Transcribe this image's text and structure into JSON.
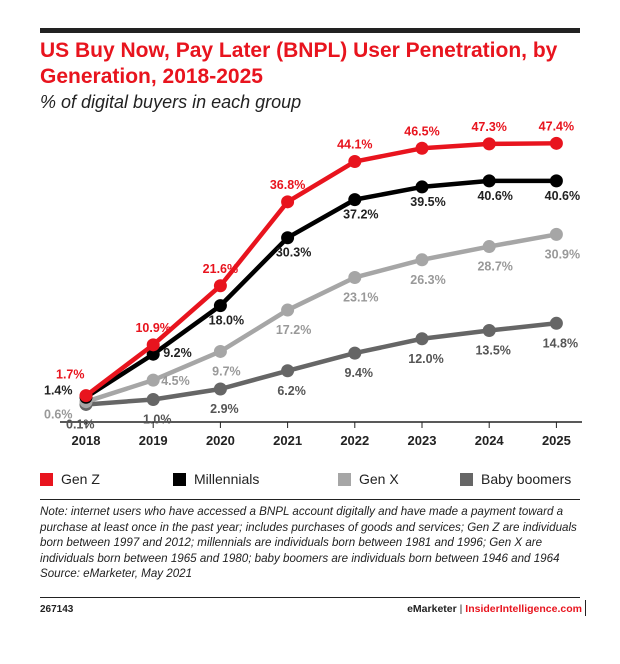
{
  "title": "US Buy Now, Pay Later (BNPL) User Penetration, by Generation, 2018-2025",
  "subtitle": "% of digital buyers in each group",
  "chart_data": {
    "type": "line",
    "x": [
      "2018",
      "2019",
      "2020",
      "2021",
      "2022",
      "2023",
      "2024",
      "2025"
    ],
    "ylim": [
      0,
      50
    ],
    "grid": false,
    "series": [
      {
        "name": "Gen Z",
        "color": "#e8141e",
        "values": [
          1.7,
          10.9,
          21.6,
          36.8,
          44.1,
          46.5,
          47.3,
          47.4
        ],
        "labels": [
          "1.7%",
          "10.9%",
          "21.6%",
          "36.8%",
          "44.1%",
          "46.5%",
          "47.3%",
          "47.4%"
        ]
      },
      {
        "name": "Millennials",
        "color": "#000000",
        "values": [
          1.4,
          9.2,
          18.0,
          30.3,
          37.2,
          39.5,
          40.6,
          40.6
        ],
        "labels": [
          "1.4%",
          "9.2%",
          "18.0%",
          "30.3%",
          "37.2%",
          "39.5%",
          "40.6%",
          "40.6%"
        ]
      },
      {
        "name": "Gen X",
        "color": "#a6a6a6",
        "values": [
          0.6,
          4.5,
          9.7,
          17.2,
          23.1,
          26.3,
          28.7,
          30.9
        ],
        "labels": [
          "0.6%",
          "4.5%",
          "9.7%",
          "17.2%",
          "23.1%",
          "26.3%",
          "28.7%",
          "30.9%"
        ]
      },
      {
        "name": "Baby boomers",
        "color": "#666666",
        "values": [
          0.1,
          1.0,
          2.9,
          6.2,
          9.4,
          12.0,
          13.5,
          14.8
        ],
        "labels": [
          "0.1%",
          "1.0%",
          "2.9%",
          "6.2%",
          "9.4%",
          "12.0%",
          "13.5%",
          "14.8%"
        ]
      }
    ]
  },
  "note": "Note: internet users who have accessed a BNPL account digitally and have made a payment toward a purchase at least once in the past year; includes purchases of goods and services; Gen Z are individuals born between 1997 and 2012; millennials are individuals born between 1981 and 1996; Gen X are individuals born between 1965 and 1980; baby boomers are individuals born between 1946 and 1964",
  "source": "Source: eMarketer, May 2021",
  "chart_id": "267143",
  "brand": {
    "emarketer": "eMarketer",
    "separator": "|",
    "insider": "InsiderIntelligence.com"
  }
}
